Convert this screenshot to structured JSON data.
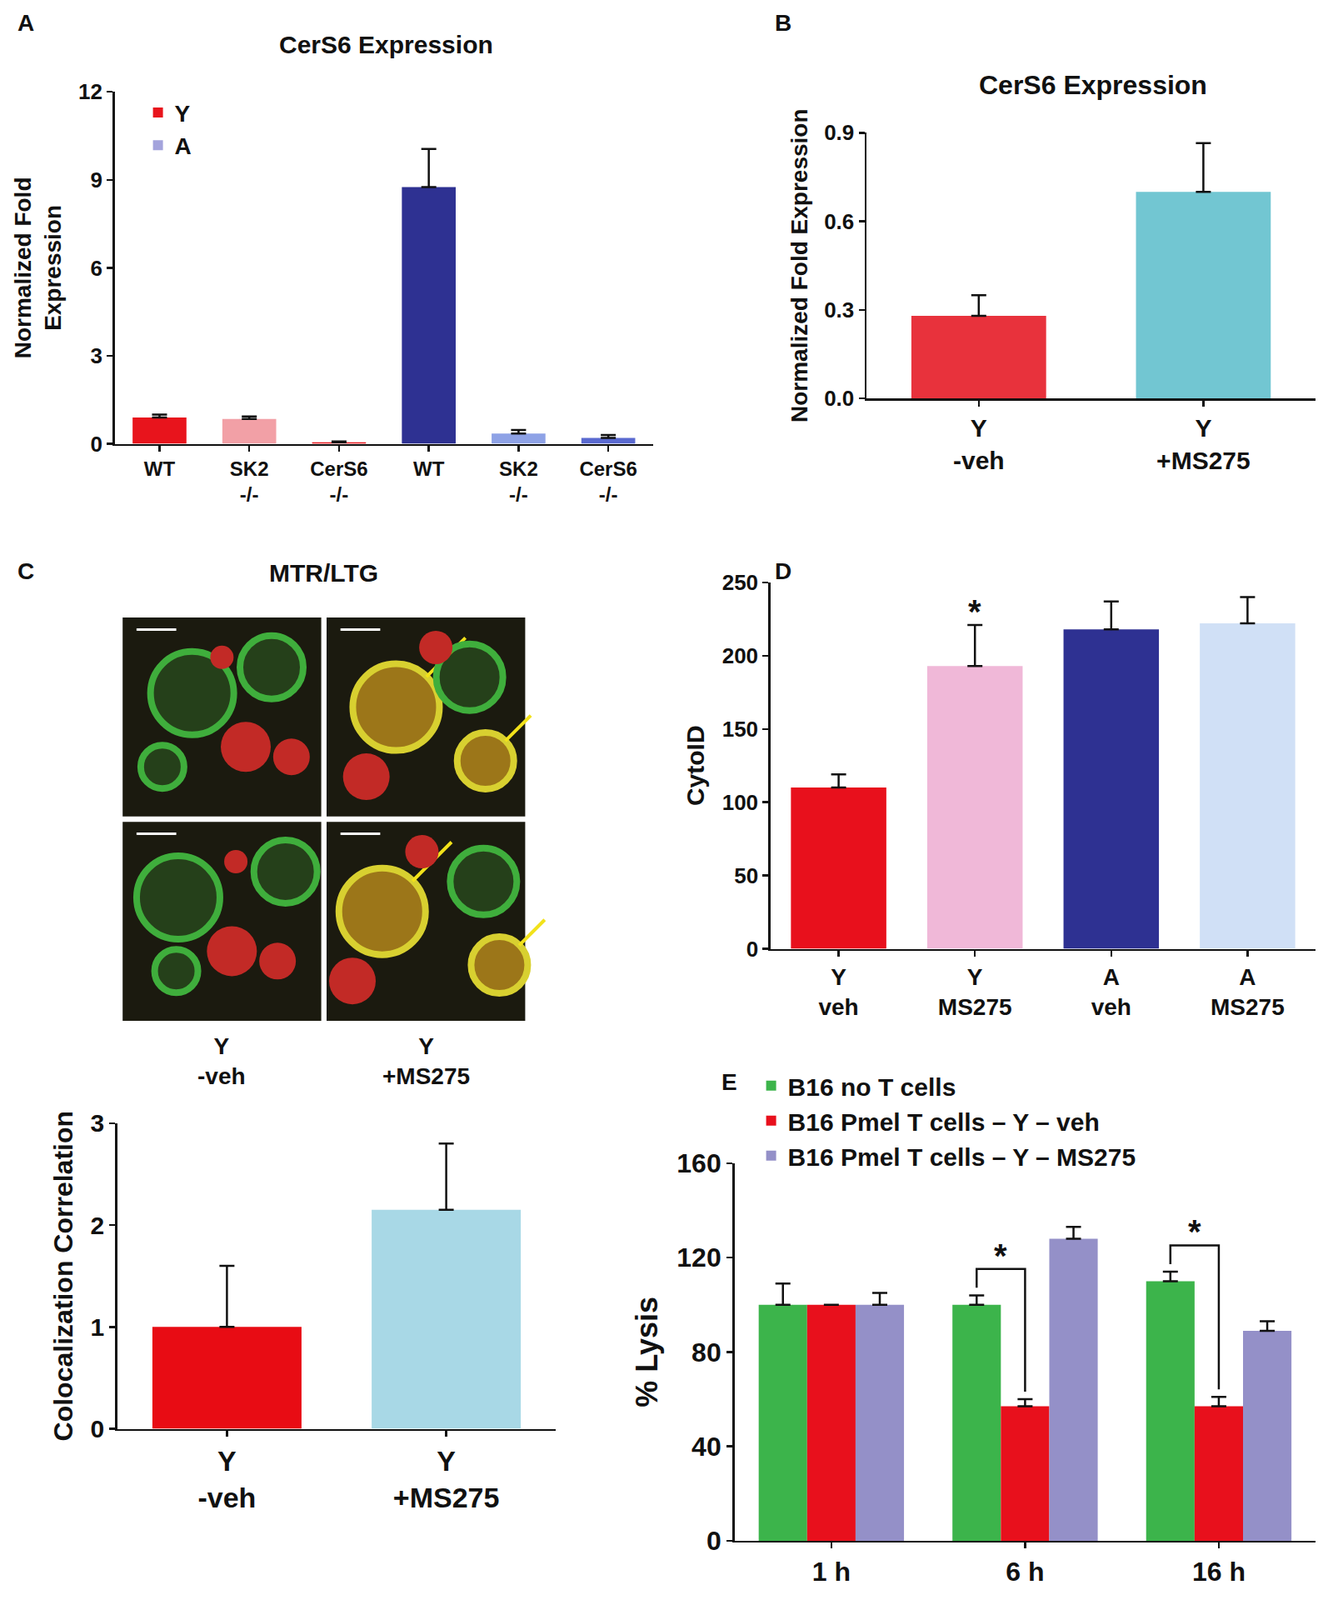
{
  "chart_data": [
    {
      "type": "bar",
      "annotations": [
        {
          "text": "A"
        }
      ],
      "title": "CerS6 Expression",
      "ylabel": "Normalized Fold\nExpression",
      "categories": [
        "WT",
        "SK2\n-/-",
        "CerS6\n-/-",
        "WT",
        "SK2\n-/-",
        "CerS6\n-/-"
      ],
      "series": [
        {
          "name": "Y",
          "color": "#e8141c",
          "values": [
            0.9,
            0.85,
            0.05,
            null,
            null,
            null
          ],
          "error": [
            0.1,
            0.08,
            0.03,
            null,
            null,
            null
          ],
          "colors": [
            "#e8141c",
            "#f2a0a6",
            "#e8141c",
            null,
            null,
            null
          ]
        },
        {
          "name": "A",
          "color": "#a3a3dc",
          "values": [
            null,
            null,
            null,
            8.75,
            0.35,
            0.2
          ],
          "error": [
            null,
            null,
            null,
            1.3,
            0.12,
            0.1
          ],
          "colors": [
            null,
            null,
            null,
            "#2e3192",
            "#8ea2e6",
            "#5a6ad0"
          ]
        }
      ],
      "ylim": [
        0,
        12
      ],
      "yticks": [
        0,
        3,
        6,
        9,
        12
      ],
      "legend": "upper left"
    },
    {
      "type": "bar",
      "annotations": [
        {
          "text": "B"
        }
      ],
      "title": "CerS6 Expression",
      "ylabel": "Normalized Fold Expression",
      "categories": [
        "Y\n-veh",
        "Y\n+MS275"
      ],
      "values": [
        0.28,
        0.7
      ],
      "error": [
        0.07,
        0.165
      ],
      "colors": [
        "#e8323c",
        "#72c6d2"
      ],
      "ylim": [
        0,
        0.9
      ],
      "yticks": [
        {
          "value": 0,
          "label": "0.0"
        },
        0.3,
        0.6,
        0.9
      ]
    },
    {
      "type": "bar",
      "annotations": [
        {
          "text": "C"
        }
      ],
      "image": {
        "title": "MTR/LTG",
        "labels": [
          "Y\n-veh",
          "Y\n+MS275"
        ]
      },
      "ylabel": "Colocalization Correlation",
      "categories": [
        "Y\n-veh",
        "Y\n+MS275"
      ],
      "values": [
        1.0,
        2.15
      ],
      "error": [
        0.6,
        0.65
      ],
      "colors": [
        "#e80c14",
        "#a8d8e6"
      ],
      "ylim": [
        0,
        3
      ],
      "yticks": [
        0,
        1,
        2,
        3
      ]
    },
    {
      "type": "bar",
      "annotations": [
        {
          "text": "D"
        },
        {
          "text": "*",
          "category": "Y\nMS275"
        }
      ],
      "ylabel": "CytoID",
      "categories": [
        "Y\nveh",
        "Y\nMS275",
        "A\nveh",
        "A\nMS275"
      ],
      "values": [
        110,
        193,
        218,
        222
      ],
      "error": [
        9,
        28,
        19,
        18
      ],
      "colors": [
        "#e8101c",
        "#f0b8d8",
        "#2e3192",
        "#d0e0f6"
      ],
      "ylim": [
        0,
        250
      ],
      "yticks": [
        0,
        50,
        100,
        150,
        200,
        250
      ]
    },
    {
      "type": "bar",
      "annotations": [
        {
          "text": "E"
        },
        {
          "text": "*",
          "category": "6 h"
        },
        {
          "text": "*",
          "category": "16 h"
        }
      ],
      "ylabel": "% Lysis",
      "categories": [
        "1 h",
        "6 h",
        "16 h"
      ],
      "series": [
        {
          "name": "B16 no T cells",
          "color": "#3cb44b",
          "values": [
            100,
            100,
            110
          ],
          "error": [
            9,
            4,
            4
          ]
        },
        {
          "name": "B16 Pmel T cells – Y – veh",
          "color": "#e8101c",
          "values": [
            100,
            57,
            57
          ],
          "error": [
            0,
            3,
            4
          ]
        },
        {
          "name": "B16 Pmel T cells – Y – MS275",
          "color": "#9490c8",
          "values": [
            100,
            128,
            89
          ],
          "error": [
            5,
            5,
            4
          ]
        }
      ],
      "ylim": [
        0,
        160
      ],
      "yticks": [
        0,
        40,
        80,
        120,
        160
      ],
      "legend": "top"
    }
  ]
}
